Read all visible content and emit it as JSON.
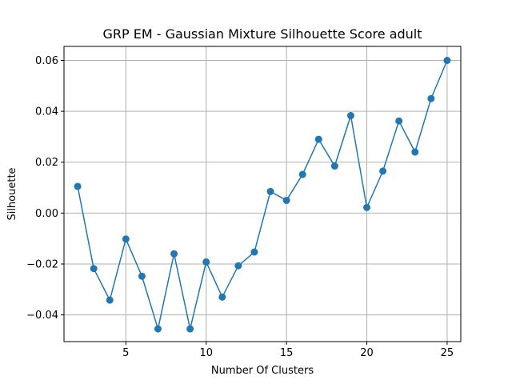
{
  "chart_data": {
    "type": "line",
    "title": "GRP EM - Gaussian Mixture Silhouette Score adult",
    "xlabel": "Number Of Clusters",
    "ylabel": "Silhouette",
    "xlim": [
      1.15,
      25.85
    ],
    "ylim": [
      -0.0505,
      0.0655
    ],
    "x_ticks": [
      5,
      10,
      15,
      20,
      25
    ],
    "y_ticks": [
      -0.04,
      -0.02,
      0.0,
      0.02,
      0.04,
      0.06
    ],
    "x_tick_labels": [
      "5",
      "10",
      "15",
      "20",
      "25"
    ],
    "y_tick_labels": [
      "−0.04",
      "−0.02",
      "0.00",
      "0.02",
      "0.04",
      "0.06"
    ],
    "grid": true,
    "series": [
      {
        "color": "#1f77b4",
        "marker": "circle",
        "x": [
          2,
          3,
          4,
          5,
          6,
          7,
          8,
          9,
          10,
          11,
          12,
          13,
          14,
          15,
          16,
          17,
          18,
          19,
          20,
          21,
          22,
          23,
          24,
          25
        ],
        "y": [
          0.0105,
          -0.0218,
          -0.0342,
          -0.0102,
          -0.0248,
          -0.0455,
          -0.016,
          -0.0455,
          -0.0192,
          -0.033,
          -0.0207,
          -0.0153,
          0.0085,
          0.005,
          0.0152,
          0.029,
          0.0185,
          0.0383,
          0.0022,
          0.0165,
          0.0362,
          0.024,
          0.045,
          0.06
        ]
      }
    ]
  }
}
